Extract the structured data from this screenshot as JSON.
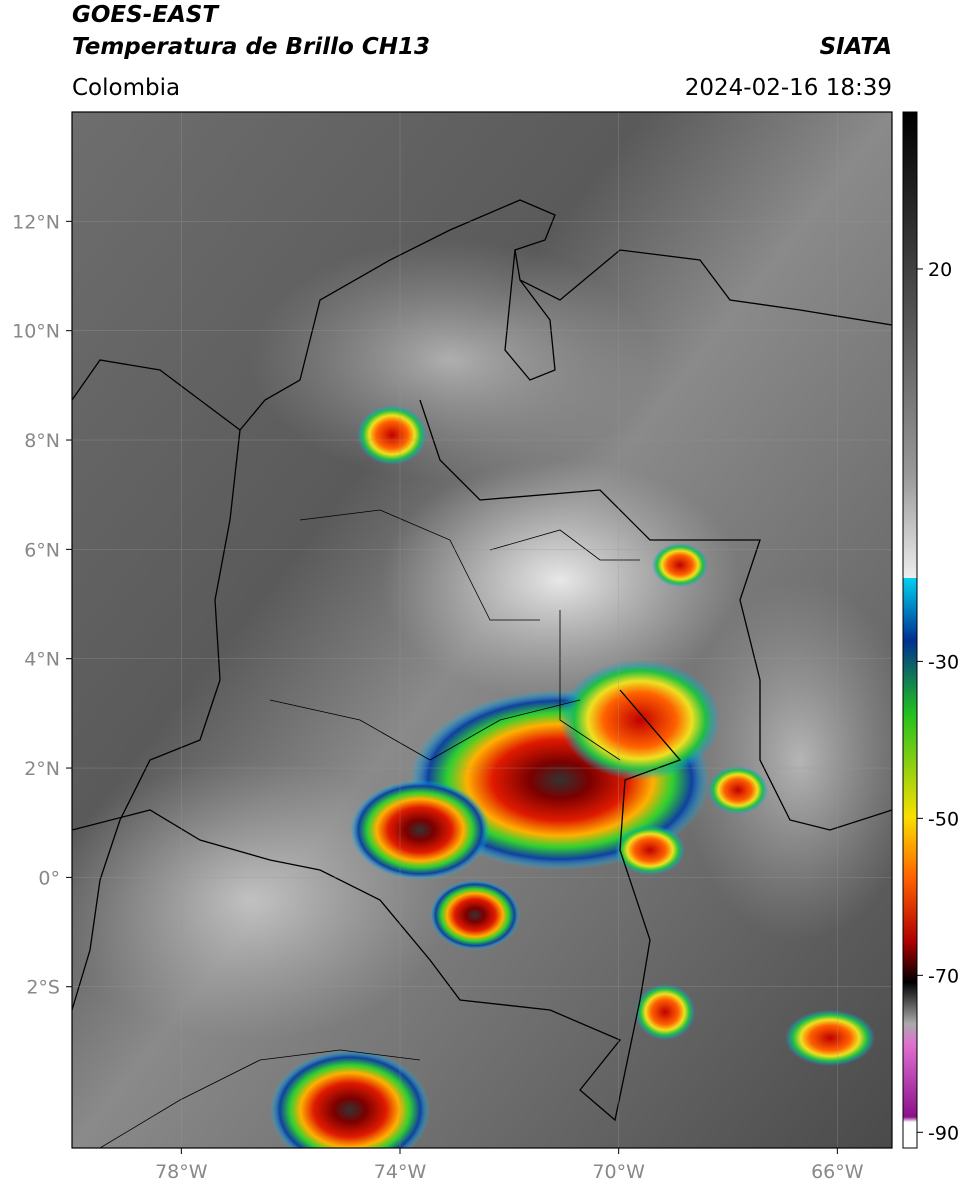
{
  "header": {
    "title": "GOES-EAST",
    "subtitle": "Temperatura de Brillo CH13",
    "source": "SIATA",
    "region": "Colombia",
    "timestamp": "2024-02-16 18:39"
  },
  "map": {
    "xlim": [
      -80,
      -65
    ],
    "ylim": [
      -4.95,
      14
    ],
    "xticks": [
      {
        "value": -78,
        "label": "78°W"
      },
      {
        "value": -74,
        "label": "74°W"
      },
      {
        "value": -70,
        "label": "70°W"
      },
      {
        "value": -66,
        "label": "66°W"
      }
    ],
    "yticks": [
      {
        "value": 12,
        "label": "12°N"
      },
      {
        "value": 10,
        "label": "10°N"
      },
      {
        "value": 8,
        "label": "8°N"
      },
      {
        "value": 6,
        "label": "6°N"
      },
      {
        "value": 4,
        "label": "4°N"
      },
      {
        "value": 2,
        "label": "2°N"
      },
      {
        "value": 0,
        "label": "0°"
      },
      {
        "value": -2,
        "label": "2°S"
      }
    ],
    "grid": true
  },
  "colorbar": {
    "clim": [
      -92,
      40
    ],
    "ticks": [
      20,
      -30,
      -50,
      -70,
      -90
    ]
  }
}
